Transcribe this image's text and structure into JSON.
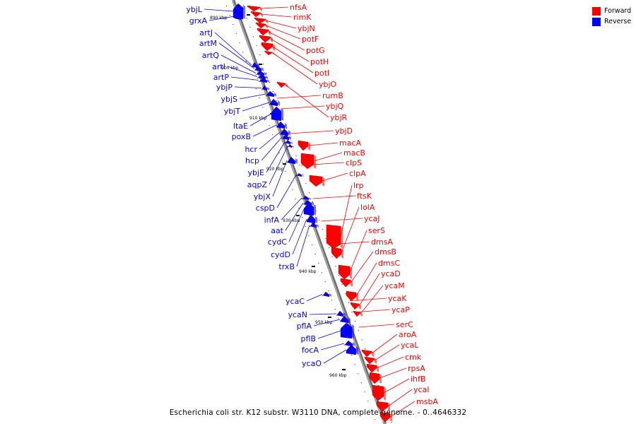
{
  "caption": "Escherichia coli str. K12 substr. W3110 DNA, complete genome. - 0..4646332",
  "legend": [
    {
      "label": "Forward",
      "color": "#ff0000"
    },
    {
      "label": "Reverse",
      "color": "#0000ff"
    }
  ],
  "colors": {
    "forward": "#ff0000",
    "reverse": "#0000ff",
    "backbone": "#888888"
  },
  "ticks": [
    "890 kbp",
    "900 kbp",
    "910 kbp",
    "920 kbp",
    "930 kbp",
    "940 kbp",
    "950 kbp",
    "960 kbp"
  ],
  "reverse_genes": [
    "ybjL",
    "grxA",
    "artJ",
    "artM",
    "artQ",
    "artI",
    "artP",
    "ybjP",
    "ybjS",
    "ybjT",
    "ltaE",
    "poxB",
    "hcr",
    "hcp",
    "ybjE",
    "aqpZ",
    "ybjX",
    "cspD",
    "infA",
    "aat",
    "cydC",
    "cydD",
    "trxB",
    "ycaC",
    "ycaN",
    "pflA",
    "pflB",
    "focA",
    "ycaO"
  ],
  "forward_genes": [
    "nfsA",
    "rimK",
    "ybjN",
    "potF",
    "potG",
    "potH",
    "potI",
    "ybjO",
    "rumB",
    "ybjQ",
    "ybjR",
    "ybjD",
    "macA",
    "macB",
    "clpS",
    "clpA",
    "lrp",
    "ftsK",
    "lolA",
    "ycaJ",
    "serS",
    "dmsA",
    "dmsB",
    "dmsC",
    "ycaD",
    "ycaM",
    "ycaK",
    "ycaP",
    "serC",
    "aroA",
    "ycaL",
    "cmk",
    "rpsA",
    "ihfB",
    "ycaI",
    "msbA"
  ]
}
